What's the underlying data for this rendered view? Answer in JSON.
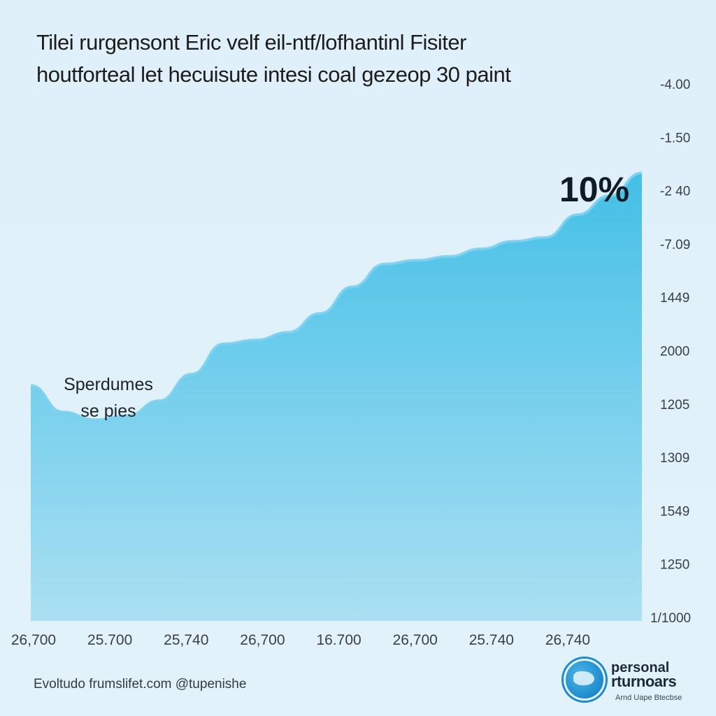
{
  "title": {
    "line1": "Tilei rurgensont Eric velf eil-ntf/lofhantinl Fisiter",
    "line2": "houtforteal let hecuisute intesi coal gezeop 30 paint"
  },
  "chart_data": {
    "type": "area",
    "y_tick_labels": [
      "-4.00",
      "-1.50",
      "-2 40",
      "-7.09",
      "1449",
      "2000",
      "1205",
      "1309",
      "1549",
      "1250",
      "1/1000"
    ],
    "x_tick_labels": [
      "26,700",
      "25.700",
      "25,740",
      "26,700",
      "16.700",
      "26,700",
      "25.740",
      "26,740"
    ],
    "values": [
      62,
      55,
      53,
      54,
      58,
      65,
      73,
      74,
      76,
      81,
      88,
      94,
      95,
      96,
      98,
      100,
      101,
      107,
      112,
      118
    ],
    "ylim": [
      0,
      140
    ],
    "fill_color_top": "#3bbde6",
    "fill_color_bottom": "#a8dff2",
    "line_color": "#7cd0ee",
    "annotations": [
      {
        "label": "Sperdumes",
        "label2": "se pies"
      },
      {
        "label": "10%"
      }
    ],
    "grid": false,
    "legend": "none"
  },
  "footer": {
    "source": "Evoltudo frumslifet.com @tupenishe"
  },
  "logo": {
    "name1": "personal",
    "name2": "rturnoars",
    "tagline": "Arnd Uape Btecbse"
  }
}
